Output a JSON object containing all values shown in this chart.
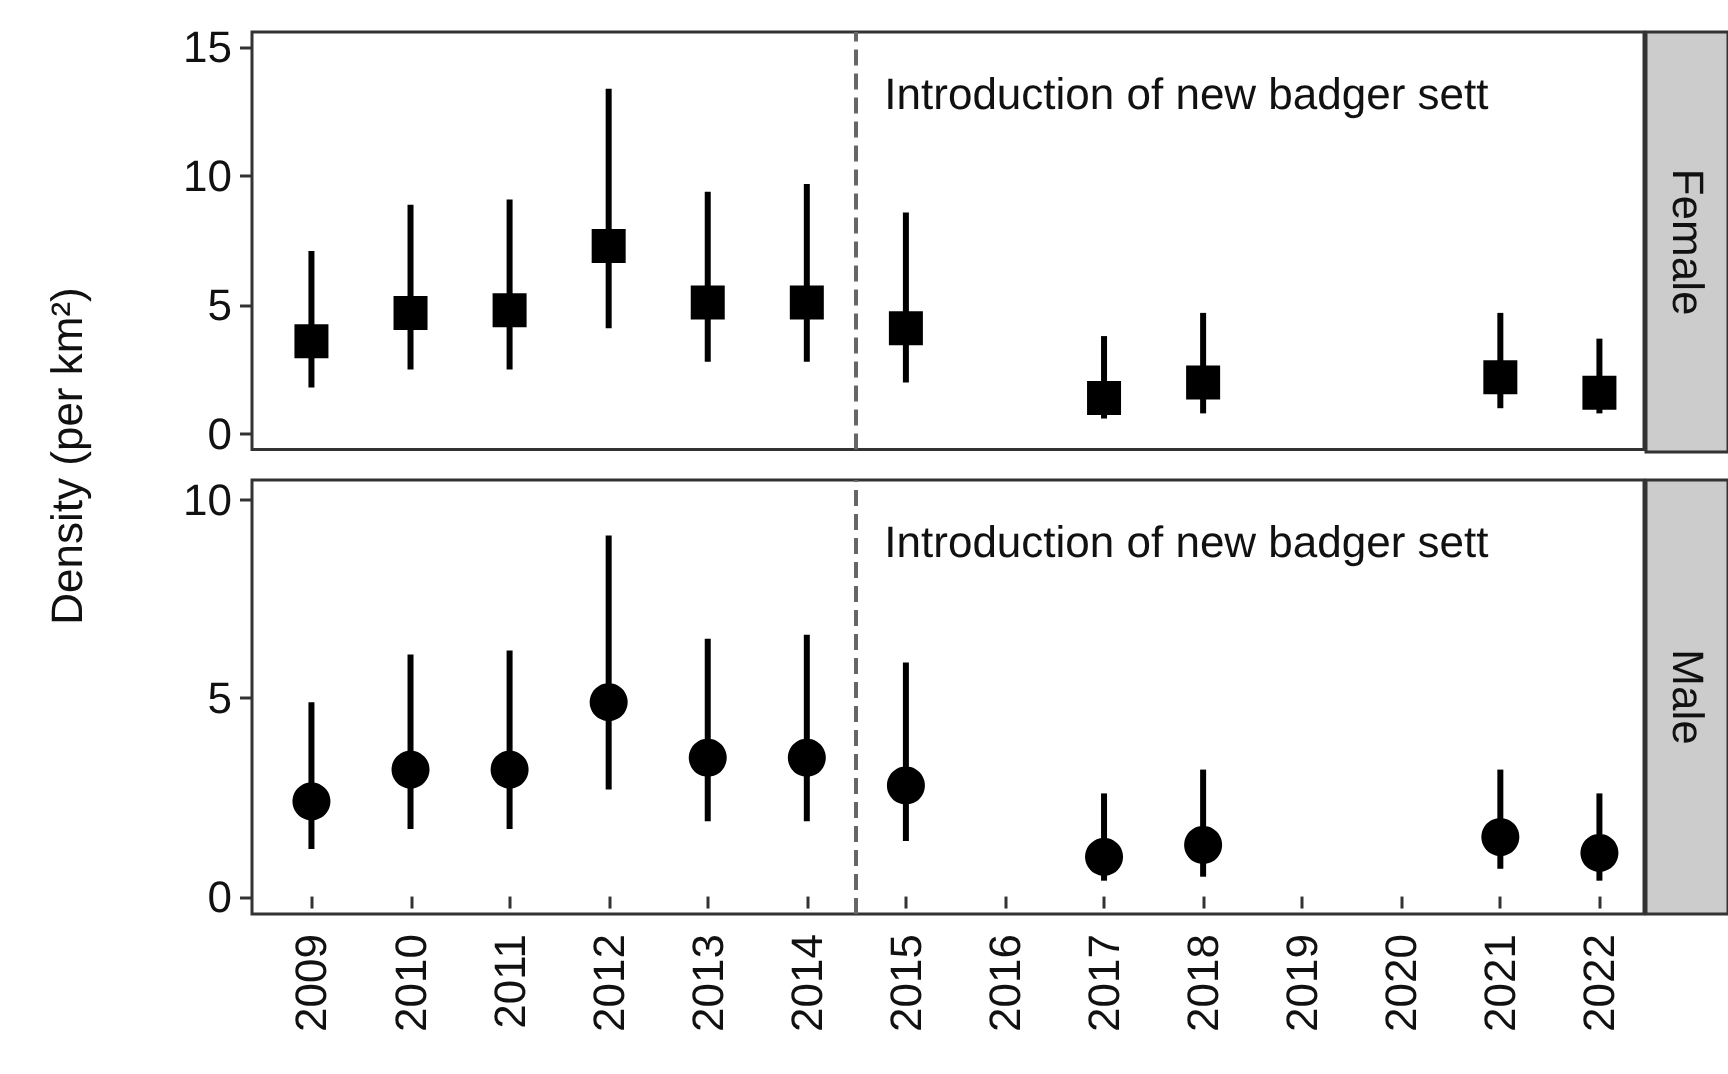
{
  "chart_data": [
    {
      "type": "scatter",
      "title": "Female",
      "ylabel": "Density (per km²)",
      "marker": "square",
      "tick_labels": "y",
      "grid": false,
      "x": [
        2009,
        2010,
        2011,
        2012,
        2013,
        2014,
        2015,
        2017,
        2018,
        2021,
        2022
      ],
      "xlim": [
        2008.4,
        2022.45
      ],
      "xticks": [
        2009,
        2010,
        2011,
        2012,
        2013,
        2014,
        2015,
        2016,
        2017,
        2018,
        2019,
        2020,
        2021,
        2022
      ],
      "ylim": [
        -0.6,
        15.6
      ],
      "yticks": [
        0,
        5,
        10,
        15
      ],
      "series": [
        {
          "color": "#000000",
          "values": [
            3.6,
            4.7,
            4.8,
            7.3,
            5.1,
            5.1,
            4.1,
            1.4,
            2.0,
            2.2,
            1.6
          ],
          "errors": [
            [
              1.8,
              7.1
            ],
            [
              2.5,
              8.9
            ],
            [
              2.5,
              9.1
            ],
            [
              4.1,
              13.4
            ],
            [
              2.8,
              9.4
            ],
            [
              2.8,
              9.7
            ],
            [
              2.0,
              8.6
            ],
            [
              0.6,
              3.8
            ],
            [
              0.8,
              4.7
            ],
            [
              1.0,
              4.7
            ],
            [
              0.8,
              3.7
            ]
          ]
        }
      ],
      "ref_lines": [
        {
          "axis": "x",
          "value": 2014.5,
          "label": "Introduction of new badger sett",
          "color": "#666666",
          "line_style": "dashed"
        }
      ]
    },
    {
      "type": "scatter",
      "title": "Male",
      "marker": "circle",
      "grid": false,
      "x": [
        2009,
        2010,
        2011,
        2012,
        2013,
        2014,
        2015,
        2017,
        2018,
        2021,
        2022
      ],
      "xlim": [
        2008.4,
        2022.45
      ],
      "xticks": [
        2009,
        2010,
        2011,
        2012,
        2013,
        2014,
        2015,
        2016,
        2017,
        2018,
        2019,
        2020,
        2021,
        2022
      ],
      "ylim": [
        -0.44,
        10.5
      ],
      "yticks": [
        0,
        5,
        10
      ],
      "series": [
        {
          "color": "#000000",
          "values": [
            2.4,
            3.2,
            3.2,
            4.9,
            3.5,
            3.5,
            2.8,
            1.0,
            1.3,
            1.5,
            1.1
          ],
          "errors": [
            [
              1.2,
              4.9
            ],
            [
              1.7,
              6.1
            ],
            [
              1.7,
              6.2
            ],
            [
              2.7,
              9.1
            ],
            [
              1.9,
              6.5
            ],
            [
              1.9,
              6.6
            ],
            [
              1.4,
              5.9
            ],
            [
              0.4,
              2.6
            ],
            [
              0.5,
              3.2
            ],
            [
              0.7,
              3.2
            ],
            [
              0.4,
              2.6
            ]
          ]
        }
      ],
      "ref_lines": [
        {
          "axis": "x",
          "value": 2014.5,
          "label": "Introduction of new badger sett",
          "color": "#666666",
          "line_style": "dashed"
        }
      ]
    }
  ]
}
